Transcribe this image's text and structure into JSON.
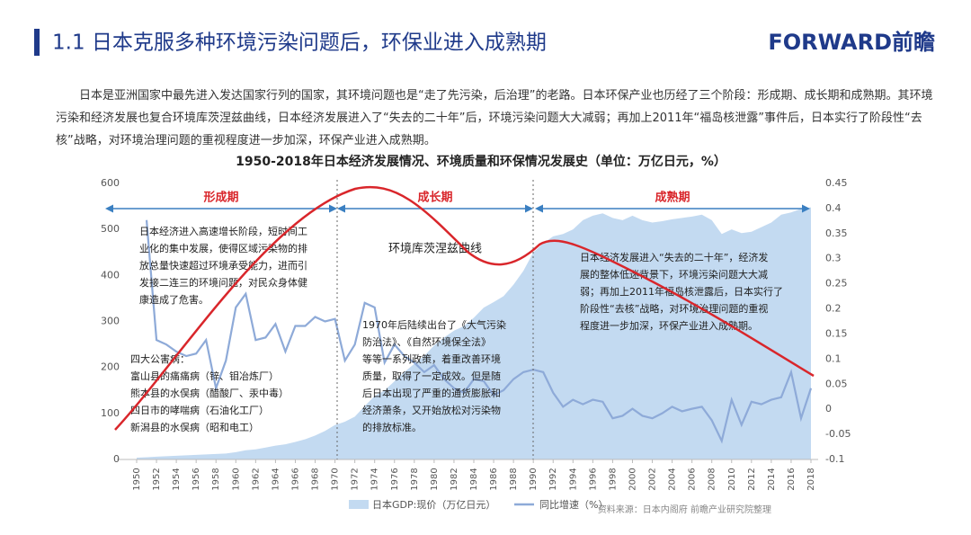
{
  "header": {
    "title": "1.1 日本克服多种环境污染问题后，环保业进入成熟期",
    "logo": "FORWARD前瞻"
  },
  "paragraph": "日本是亚洲国家中最先进入发达国家行列的国家，其环境问题也是“走了先污染，后治理”的老路。日本环保产业也历经了三个阶段：形成期、成长期和成熟期。其环境污染和经济发展也复合环境库茨涅兹曲线，日本经济发展进入了“失去的二十年”后，环境污染问题大大减弱；再加上2011年“福岛核泄露”事件后，日本实行了阶段性“去核”战略，对环境治理问题的重视程度进一步加深，环保产业进入成熟期。",
  "chart_data": {
    "type": "area-line",
    "title": "1950-2018年日本经济发展情况、环境质量和环保情况发展史（单位：万亿日元，%）",
    "x": [
      1950,
      1951,
      1952,
      1953,
      1954,
      1955,
      1956,
      1957,
      1958,
      1959,
      1960,
      1961,
      1962,
      1963,
      1964,
      1965,
      1966,
      1967,
      1968,
      1969,
      1970,
      1971,
      1972,
      1973,
      1974,
      1975,
      1976,
      1977,
      1978,
      1979,
      1980,
      1981,
      1982,
      1983,
      1984,
      1985,
      1986,
      1987,
      1988,
      1989,
      1990,
      1991,
      1992,
      1993,
      1994,
      1995,
      1996,
      1997,
      1998,
      1999,
      2000,
      2001,
      2002,
      2003,
      2004,
      2005,
      2006,
      2007,
      2008,
      2009,
      2010,
      2011,
      2012,
      2013,
      2014,
      2015,
      2016,
      2017,
      2018
    ],
    "series": [
      {
        "name": "日本GDP:现价（万亿日元）",
        "color": "#c3daf1",
        "type": "area",
        "values": [
          4,
          5,
          6,
          7,
          8,
          9,
          10,
          11,
          12,
          13,
          16,
          20,
          22,
          26,
          30,
          33,
          38,
          44,
          52,
          62,
          75,
          82,
          93,
          116,
          138,
          150,
          170,
          190,
          208,
          225,
          248,
          265,
          280,
          290,
          308,
          330,
          342,
          355,
          380,
          410,
          450,
          470,
          485,
          490,
          500,
          520,
          530,
          535,
          525,
          520,
          530,
          520,
          515,
          518,
          522,
          525,
          528,
          532,
          520,
          490,
          500,
          492,
          495,
          505,
          515,
          532,
          537,
          545,
          548
        ]
      },
      {
        "name": "同比增速（%）",
        "color": "#8eaad8",
        "type": "line",
        "axis": "y2",
        "values": [
          null,
          0.377,
          0.138,
          0.129,
          0.115,
          0.106,
          0.111,
          0.138,
          0.042,
          0.097,
          0.203,
          0.23,
          0.138,
          0.143,
          0.17,
          0.115,
          0.166,
          0.166,
          0.184,
          0.175,
          0.18,
          0.097,
          0.129,
          0.212,
          0.203,
          0.093,
          0.129,
          0.106,
          0.093,
          0.074,
          0.088,
          0.06,
          0.042,
          0.033,
          0.06,
          0.056,
          0.028,
          0.038,
          0.06,
          0.074,
          0.079,
          0.074,
          0.033,
          0.005,
          0.019,
          0.01,
          0.019,
          0.015,
          -0.018,
          -0.013,
          0.001,
          -0.013,
          -0.018,
          -0.008,
          0.005,
          -0.004,
          0.001,
          0.005,
          -0.022,
          -0.063,
          0.019,
          -0.031,
          0.015,
          0.01,
          0.019,
          0.024,
          0.074,
          -0.018,
          0.042
        ]
      }
    ],
    "xlim": [
      1950,
      2018
    ],
    "xticks": [
      1950,
      1952,
      1954,
      1956,
      1958,
      1960,
      1962,
      1964,
      1966,
      1968,
      1970,
      1972,
      1974,
      1976,
      1978,
      1980,
      1982,
      1984,
      1986,
      1988,
      1990,
      1992,
      1994,
      1996,
      1998,
      2000,
      2002,
      2004,
      2006,
      2008,
      2010,
      2012,
      2014,
      2016,
      2018
    ],
    "ylim": [
      0,
      600
    ],
    "yticks": [
      0,
      100,
      200,
      300,
      400,
      500,
      600
    ],
    "y2lim": [
      -0.1,
      0.45
    ],
    "y2ticks": [
      -0.1,
      -0.05,
      0,
      0.05,
      0.1,
      0.15,
      0.2,
      0.25,
      0.3,
      0.35,
      0.4,
      0.45
    ],
    "phases": [
      "形成期",
      "成长期",
      "成熟期"
    ],
    "curve_label": "环境库茨涅兹曲线",
    "annotations": [
      [
        "日本经济进入高速增长阶段，短时间工",
        "业化的集中发展，使得区域污染物的排",
        "放总量快速超过环境承受能力，进而引",
        "发接二连三的环境问题，对民众身体健",
        "康造成了危害。"
      ],
      [
        "四大公害病：",
        "富山县的痛痛病（锌、钼冶炼厂）",
        "熊本县的水俣病（醋酸厂、汞中毒）",
        "四日市的哮喘病（石油化工厂）",
        "新潟县的水俣病（昭和电工）"
      ],
      [
        "1970年后陆续出台了《大气污染",
        "防治法》、《自然环境保全法》",
        "等等一系列政策，着重改善环境",
        "质量，取得了一定成效。但是随",
        "后日本出现了严重的通货膨胀和",
        "经济萧条，又开始放松对污染物",
        "的排放标准。"
      ],
      [
        "日本经济发展进入“失去的二十年”，经济发",
        "展的整体低迷背景下，环境污染问题大大减",
        "弱；再加上2011年福岛核泄露后，日本实行了",
        "阶段性“去核”战略，对环境治理问题的重视",
        "程度进一步加深，环保产业进入成熟期。"
      ]
    ],
    "source": "资料来源：日本内阁府 前瞻产业研究院整理"
  }
}
